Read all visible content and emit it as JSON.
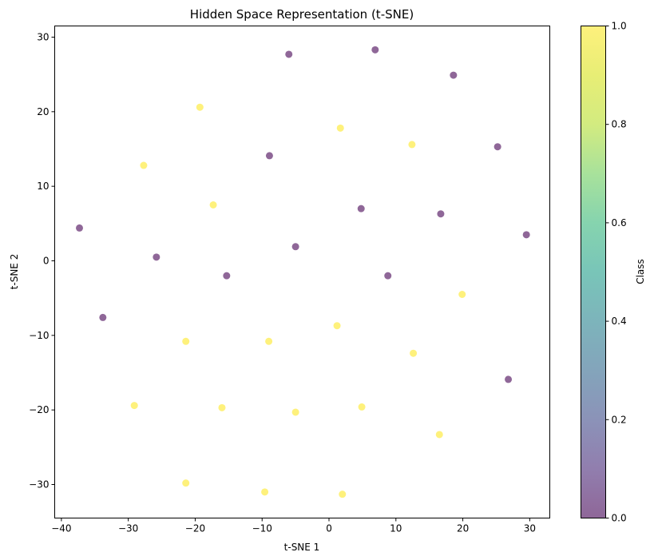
{
  "chart_data": {
    "type": "scatter",
    "title": "Hidden Space Representation (t-SNE)",
    "xlabel": "t-SNE 1",
    "ylabel": "t-SNE 2",
    "xlim": [
      -41,
      33
    ],
    "ylim": [
      -34.5,
      31.5
    ],
    "xticks": [
      -40,
      -30,
      -20,
      -10,
      0,
      10,
      20,
      30
    ],
    "yticks": [
      -30,
      -20,
      -10,
      0,
      10,
      20,
      30
    ],
    "grid": false,
    "colorbar": {
      "label": "Class",
      "range": [
        0,
        1
      ],
      "ticks": [
        "0.0",
        "0.2",
        "0.4",
        "0.6",
        "0.8",
        "1.0"
      ],
      "colormap": "viridis",
      "alpha": 0.6
    },
    "colors": {
      "class_0": "#440154",
      "class_1": "#fde725"
    },
    "series": [
      {
        "class": 0,
        "points": [
          {
            "x": -6,
            "y": 27.7
          },
          {
            "x": 6.9,
            "y": 28.3
          },
          {
            "x": 18.6,
            "y": 24.9
          },
          {
            "x": 25.2,
            "y": 15.3
          },
          {
            "x": -8.9,
            "y": 14.1
          },
          {
            "x": 4.8,
            "y": 7.0
          },
          {
            "x": 16.7,
            "y": 6.3
          },
          {
            "x": 29.5,
            "y": 3.5
          },
          {
            "x": -37.3,
            "y": 4.4
          },
          {
            "x": -25.8,
            "y": 0.5
          },
          {
            "x": -5,
            "y": 1.9
          },
          {
            "x": -15.3,
            "y": -2.0
          },
          {
            "x": 8.8,
            "y": -2.0
          },
          {
            "x": -33.8,
            "y": -7.6
          },
          {
            "x": 26.8,
            "y": -15.9
          }
        ]
      },
      {
        "class": 1,
        "points": [
          {
            "x": -19.3,
            "y": 20.6
          },
          {
            "x": 1.7,
            "y": 17.8
          },
          {
            "x": 12.4,
            "y": 15.6
          },
          {
            "x": -27.7,
            "y": 12.8
          },
          {
            "x": -17.3,
            "y": 7.5
          },
          {
            "x": 19.9,
            "y": -4.5
          },
          {
            "x": 1.2,
            "y": -8.7
          },
          {
            "x": -21.4,
            "y": -10.8
          },
          {
            "x": -9,
            "y": -10.8
          },
          {
            "x": 12.6,
            "y": -12.4
          },
          {
            "x": -29.1,
            "y": -19.4
          },
          {
            "x": -16,
            "y": -19.7
          },
          {
            "x": -5,
            "y": -20.3
          },
          {
            "x": 4.9,
            "y": -19.6
          },
          {
            "x": 16.5,
            "y": -23.3
          },
          {
            "x": -21.4,
            "y": -29.8
          },
          {
            "x": -9.6,
            "y": -31.0
          },
          {
            "x": 2,
            "y": -31.3
          }
        ]
      }
    ]
  }
}
